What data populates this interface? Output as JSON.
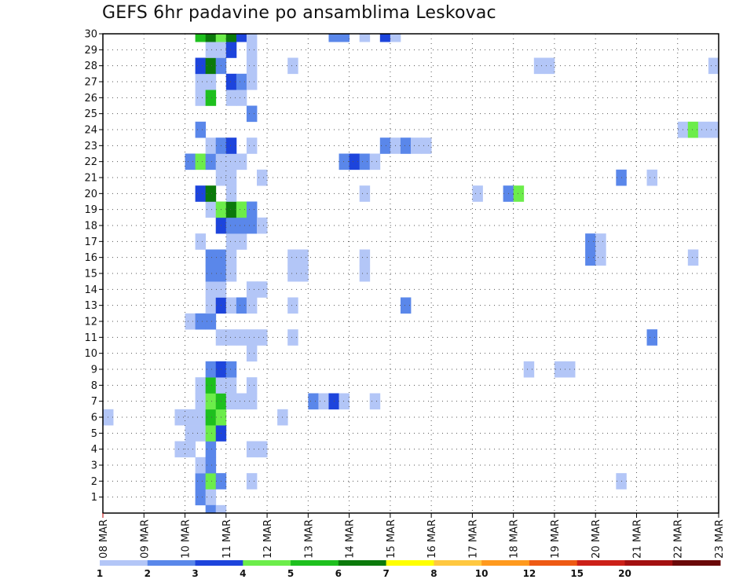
{
  "title": "GEFS 6hr padavine po ansamblima Leskovac",
  "chart_data": {
    "type": "heatmap",
    "title": "GEFS 6hr padavine po ansamblima Leskovac",
    "xlabel": "",
    "ylabel": "",
    "x_tick_labels": [
      "08 MAR",
      "09 MAR",
      "10 MAR",
      "11 MAR",
      "12 MAR",
      "13 MAR",
      "14 MAR",
      "15 MAR",
      "16 MAR",
      "17 MAR",
      "18 MAR",
      "19 MAR",
      "20 MAR",
      "21 MAR",
      "22 MAR",
      "23 MAR"
    ],
    "y_tick_labels": [
      "1",
      "2",
      "3",
      "4",
      "5",
      "6",
      "7",
      "8",
      "9",
      "10",
      "11",
      "12",
      "13",
      "14",
      "15",
      "16",
      "17",
      "18",
      "19",
      "20",
      "21",
      "22",
      "23",
      "24",
      "25",
      "26",
      "27",
      "28",
      "29",
      "30"
    ],
    "x_range_steps": [
      0,
      60
    ],
    "y_range": [
      0,
      30
    ],
    "steps_per_day": 4,
    "grid": true,
    "colorbar": {
      "labels": [
        "1",
        "2",
        "3",
        "4",
        "5",
        "6",
        "7",
        "8",
        "10",
        "12",
        "15",
        "20"
      ],
      "colors": [
        "#b3c6f7",
        "#5a87ea",
        "#1d44dc",
        "#6ced4a",
        "#1ec01e",
        "#0b7a0b",
        "#ffff00",
        "#ffc840",
        "#ff9a1e",
        "#ee5a14",
        "#cc2018",
        "#a31010",
        "#6a0808"
      ]
    },
    "cells": [
      [
        0,
        1,
        9,
        2
      ],
      [
        0,
        1,
        10,
        1
      ],
      [
        0,
        2,
        9,
        2
      ],
      [
        0,
        2,
        10,
        4
      ],
      [
        0,
        2,
        11,
        2
      ],
      [
        0,
        2,
        14,
        1
      ],
      [
        0,
        2,
        50,
        1
      ],
      [
        0,
        3,
        9,
        1
      ],
      [
        0,
        3,
        10,
        2
      ],
      [
        0,
        4,
        7,
        1
      ],
      [
        0,
        4,
        8,
        1
      ],
      [
        0,
        4,
        10,
        2
      ],
      [
        0,
        4,
        14,
        1
      ],
      [
        0,
        4,
        15,
        1
      ],
      [
        0,
        5,
        8,
        1
      ],
      [
        0,
        5,
        9,
        1
      ],
      [
        0,
        5,
        10,
        4
      ],
      [
        0,
        5,
        11,
        3
      ],
      [
        0,
        6,
        0,
        1
      ],
      [
        0,
        6,
        7,
        1
      ],
      [
        0,
        6,
        8,
        1
      ],
      [
        0,
        6,
        9,
        1
      ],
      [
        0,
        6,
        10,
        5
      ],
      [
        0,
        6,
        11,
        4
      ],
      [
        0,
        6,
        17,
        1
      ],
      [
        0,
        7,
        9,
        1
      ],
      [
        0,
        7,
        10,
        4
      ],
      [
        0,
        7,
        11,
        5
      ],
      [
        0,
        7,
        12,
        1
      ],
      [
        0,
        7,
        13,
        1
      ],
      [
        0,
        7,
        14,
        1
      ],
      [
        0,
        7,
        20,
        2
      ],
      [
        0,
        7,
        21,
        1
      ],
      [
        0,
        7,
        22,
        3
      ],
      [
        0,
        7,
        23,
        1
      ],
      [
        0,
        7,
        26,
        1
      ],
      [
        0,
        8,
        9,
        1
      ],
      [
        0,
        8,
        10,
        5
      ],
      [
        0,
        8,
        11,
        1
      ],
      [
        0,
        8,
        12,
        1
      ],
      [
        0,
        8,
        14,
        1
      ],
      [
        0,
        9,
        10,
        2
      ],
      [
        0,
        9,
        11,
        3
      ],
      [
        0,
        9,
        12,
        2
      ],
      [
        0,
        9,
        41,
        1
      ],
      [
        0,
        9,
        44,
        1
      ],
      [
        0,
        9,
        45,
        1
      ],
      [
        0,
        10,
        14,
        1
      ],
      [
        0,
        11,
        11,
        1
      ],
      [
        0,
        11,
        12,
        1
      ],
      [
        0,
        11,
        13,
        1
      ],
      [
        0,
        11,
        14,
        1
      ],
      [
        0,
        11,
        15,
        1
      ],
      [
        0,
        11,
        18,
        1
      ],
      [
        0,
        11,
        53,
        2
      ],
      [
        0,
        12,
        8,
        1
      ],
      [
        0,
        12,
        9,
        2
      ],
      [
        0,
        12,
        10,
        2
      ],
      [
        0,
        13,
        10,
        1
      ],
      [
        0,
        13,
        11,
        3
      ],
      [
        0,
        13,
        12,
        1
      ],
      [
        0,
        13,
        13,
        2
      ],
      [
        0,
        13,
        14,
        1
      ],
      [
        0,
        13,
        18,
        1
      ],
      [
        0,
        13,
        29,
        2
      ],
      [
        0,
        14,
        10,
        1
      ],
      [
        0,
        14,
        11,
        1
      ],
      [
        0,
        14,
        14,
        1
      ],
      [
        0,
        14,
        15,
        1
      ],
      [
        0,
        15,
        10,
        2
      ],
      [
        0,
        15,
        11,
        2
      ],
      [
        0,
        15,
        12,
        1
      ],
      [
        0,
        15,
        18,
        1
      ],
      [
        0,
        15,
        19,
        1
      ],
      [
        0,
        15,
        25,
        1
      ],
      [
        0,
        16,
        10,
        2
      ],
      [
        0,
        16,
        11,
        2
      ],
      [
        0,
        16,
        12,
        1
      ],
      [
        0,
        16,
        18,
        1
      ],
      [
        0,
        16,
        19,
        1
      ],
      [
        0,
        16,
        25,
        1
      ],
      [
        0,
        16,
        47,
        2
      ],
      [
        0,
        16,
        48,
        1
      ],
      [
        0,
        16,
        57,
        1
      ],
      [
        0,
        17,
        9,
        1
      ],
      [
        0,
        17,
        12,
        1
      ],
      [
        0,
        17,
        13,
        1
      ],
      [
        0,
        17,
        47,
        2
      ],
      [
        0,
        17,
        48,
        1
      ],
      [
        0,
        18,
        11,
        3
      ],
      [
        0,
        18,
        12,
        2
      ],
      [
        0,
        18,
        13,
        2
      ],
      [
        0,
        18,
        14,
        2
      ],
      [
        0,
        18,
        15,
        1
      ],
      [
        0,
        19,
        10,
        1
      ],
      [
        0,
        19,
        11,
        4
      ],
      [
        0,
        19,
        12,
        6
      ],
      [
        0,
        19,
        13,
        4
      ],
      [
        0,
        19,
        14,
        2
      ],
      [
        0,
        20,
        9,
        3
      ],
      [
        0,
        20,
        10,
        6
      ],
      [
        0,
        20,
        12,
        1
      ],
      [
        0,
        20,
        25,
        1
      ],
      [
        0,
        20,
        36,
        1
      ],
      [
        0,
        20,
        39,
        2
      ],
      [
        0,
        20,
        40,
        4
      ],
      [
        0,
        21,
        11,
        1
      ],
      [
        0,
        21,
        12,
        1
      ],
      [
        0,
        21,
        15,
        1
      ],
      [
        0,
        21,
        50,
        2
      ],
      [
        0,
        21,
        53,
        1
      ],
      [
        0,
        22,
        8,
        2
      ],
      [
        0,
        22,
        9,
        4
      ],
      [
        0,
        22,
        10,
        2
      ],
      [
        0,
        22,
        11,
        1
      ],
      [
        0,
        22,
        12,
        1
      ],
      [
        0,
        22,
        13,
        1
      ],
      [
        0,
        22,
        23,
        2
      ],
      [
        0,
        22,
        24,
        3
      ],
      [
        0,
        22,
        25,
        2
      ],
      [
        0,
        22,
        26,
        1
      ],
      [
        0,
        23,
        10,
        1
      ],
      [
        0,
        23,
        11,
        2
      ],
      [
        0,
        23,
        12,
        3
      ],
      [
        0,
        23,
        14,
        1
      ],
      [
        0,
        23,
        27,
        2
      ],
      [
        0,
        23,
        28,
        1
      ],
      [
        0,
        23,
        29,
        2
      ],
      [
        0,
        23,
        30,
        1
      ],
      [
        0,
        23,
        31,
        1
      ],
      [
        0,
        24,
        9,
        2
      ],
      [
        0,
        24,
        56,
        1
      ],
      [
        0,
        24,
        57,
        4
      ],
      [
        0,
        24,
        58,
        1
      ],
      [
        0,
        24,
        59,
        1
      ],
      [
        0,
        25,
        14,
        2
      ],
      [
        0,
        26,
        9,
        1
      ],
      [
        0,
        26,
        10,
        5
      ],
      [
        0,
        26,
        12,
        1
      ],
      [
        0,
        26,
        13,
        1
      ],
      [
        0,
        27,
        9,
        1
      ],
      [
        0,
        27,
        10,
        1
      ],
      [
        0,
        27,
        12,
        3
      ],
      [
        0,
        27,
        13,
        2
      ],
      [
        0,
        27,
        14,
        1
      ],
      [
        0,
        28,
        9,
        3
      ],
      [
        0,
        28,
        10,
        6
      ],
      [
        0,
        28,
        11,
        2
      ],
      [
        0,
        28,
        14,
        1
      ],
      [
        0,
        28,
        18,
        1
      ],
      [
        0,
        28,
        42,
        1
      ],
      [
        0,
        28,
        43,
        1
      ],
      [
        0,
        28,
        59,
        1
      ],
      [
        0,
        29,
        10,
        1
      ],
      [
        0,
        29,
        11,
        1
      ],
      [
        0,
        29,
        12,
        3
      ],
      [
        0,
        29,
        14,
        1
      ],
      [
        0,
        30,
        9,
        5
      ],
      [
        0,
        30,
        10,
        6
      ],
      [
        0,
        30,
        11,
        4
      ],
      [
        0,
        30,
        12,
        6
      ],
      [
        0,
        30,
        13,
        3
      ],
      [
        0,
        30,
        14,
        1
      ],
      [
        0,
        30,
        22,
        2
      ],
      [
        0,
        30,
        23,
        2
      ],
      [
        0,
        30,
        25,
        1
      ],
      [
        0,
        30,
        27,
        3
      ],
      [
        0,
        30,
        28,
        1
      ],
      [
        0,
        0,
        10,
        2
      ],
      [
        0,
        0,
        11,
        1
      ]
    ]
  }
}
